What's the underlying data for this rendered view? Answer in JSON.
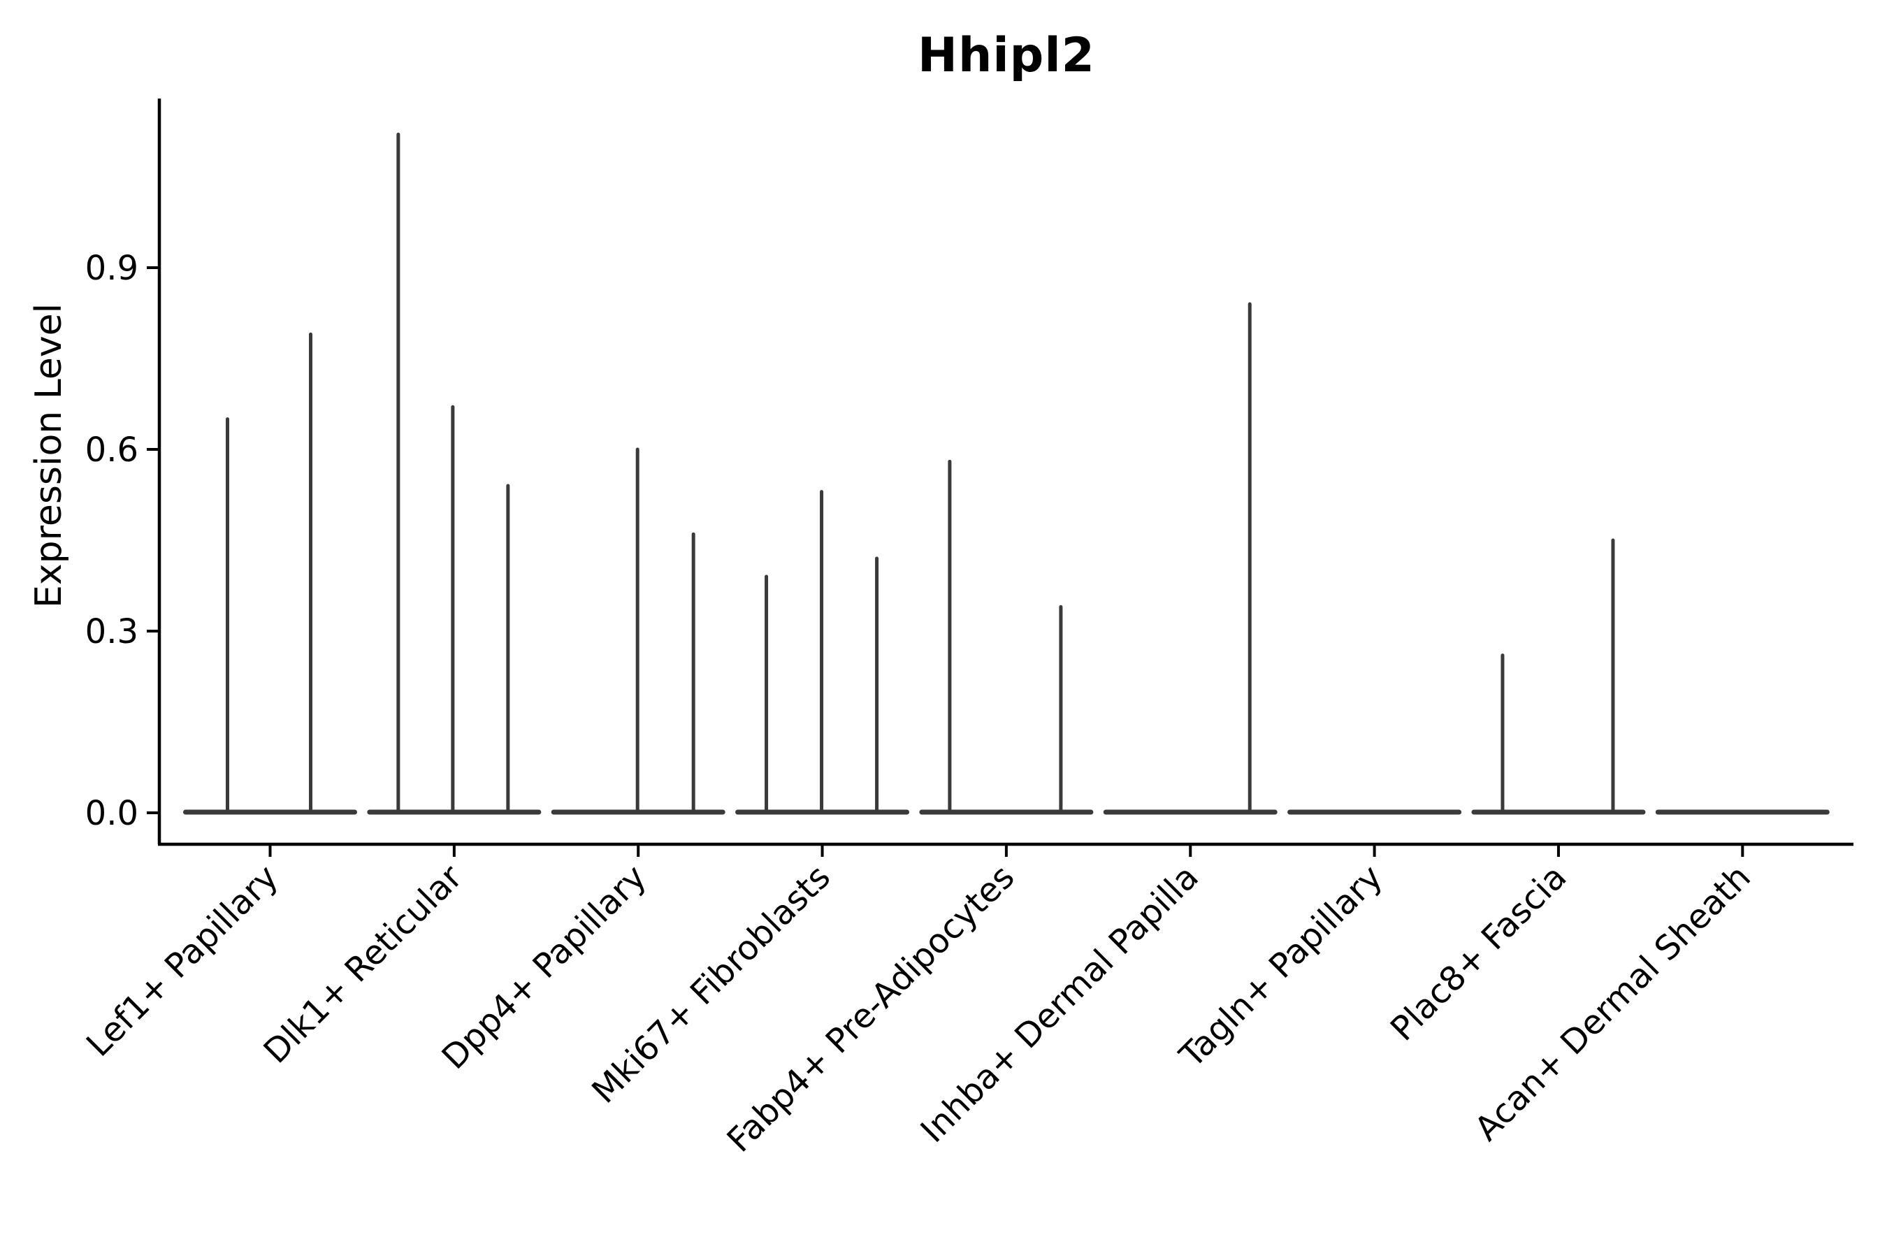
{
  "page": {
    "background": "#ffffff"
  },
  "chart_data": {
    "type": "violin",
    "title": "Hhipl2",
    "ylabel": "Expression Level",
    "xlabel": "",
    "yticks": [
      0.0,
      0.3,
      0.6,
      0.9
    ],
    "ytick_labels": [
      "0.0",
      "0.3",
      "0.6",
      "0.9"
    ],
    "ylim": [
      -0.05,
      1.18
    ],
    "grid": false,
    "legend": null,
    "violin_color": "#3a3a3a",
    "axis_color": "#000000",
    "flat_baseline_value": 0.0,
    "note": "Each category is a violin flattened at 0 expression with narrow density spikes up to the max expression value",
    "categories": [
      {
        "label": "Lef1+ Papillary",
        "spikes": [
          {
            "dx": -61,
            "max": 0.65
          },
          {
            "dx": 58,
            "max": 0.79
          }
        ]
      },
      {
        "label": "Dlk1+ Reticular",
        "spikes": [
          {
            "dx": -80,
            "max": 1.12
          },
          {
            "dx": -2,
            "max": 0.67
          },
          {
            "dx": 77,
            "max": 0.54
          }
        ]
      },
      {
        "label": "Dpp4+ Papillary",
        "spikes": [
          {
            "dx": -1,
            "max": 0.6
          },
          {
            "dx": 79,
            "max": 0.46
          }
        ]
      },
      {
        "label": "Mki67+ Fibroblasts",
        "spikes": [
          {
            "dx": -80,
            "max": 0.39
          },
          {
            "dx": -1,
            "max": 0.53
          },
          {
            "dx": 78,
            "max": 0.42
          }
        ]
      },
      {
        "label": "Fabp4+ Pre-Adipocytes",
        "spikes": [
          {
            "dx": -81,
            "max": 0.58
          },
          {
            "dx": 78,
            "max": 0.34
          }
        ]
      },
      {
        "label": "Inhba+ Dermal Papilla",
        "spikes": [
          {
            "dx": 85,
            "max": 0.84
          }
        ]
      },
      {
        "label": "Tagln+ Papillary",
        "spikes": []
      },
      {
        "label": "Plac8+ Fascia",
        "spikes": [
          {
            "dx": -80,
            "max": 0.26
          },
          {
            "dx": 78,
            "max": 0.45
          }
        ]
      },
      {
        "label": "Acan+ Dermal Sheath",
        "spikes": []
      }
    ]
  }
}
